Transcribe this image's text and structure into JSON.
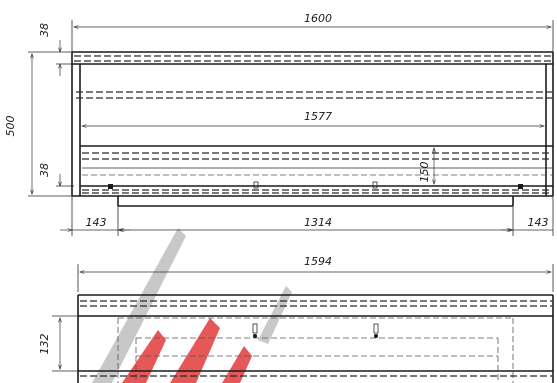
{
  "dimensions": {
    "top_width": "1600",
    "inner_width": "1577",
    "slot_width": "1314",
    "left_offset": "143",
    "right_offset": "143",
    "overall_height": "500",
    "top_strip": "38",
    "bottom_strip": "38",
    "profile_height": "150",
    "lower_width": "1594",
    "lower_height": "132"
  },
  "colors": {
    "line": "#1a1a1a",
    "watermark_red": "#e23a3a",
    "watermark_gray": "#9a9a9a"
  }
}
